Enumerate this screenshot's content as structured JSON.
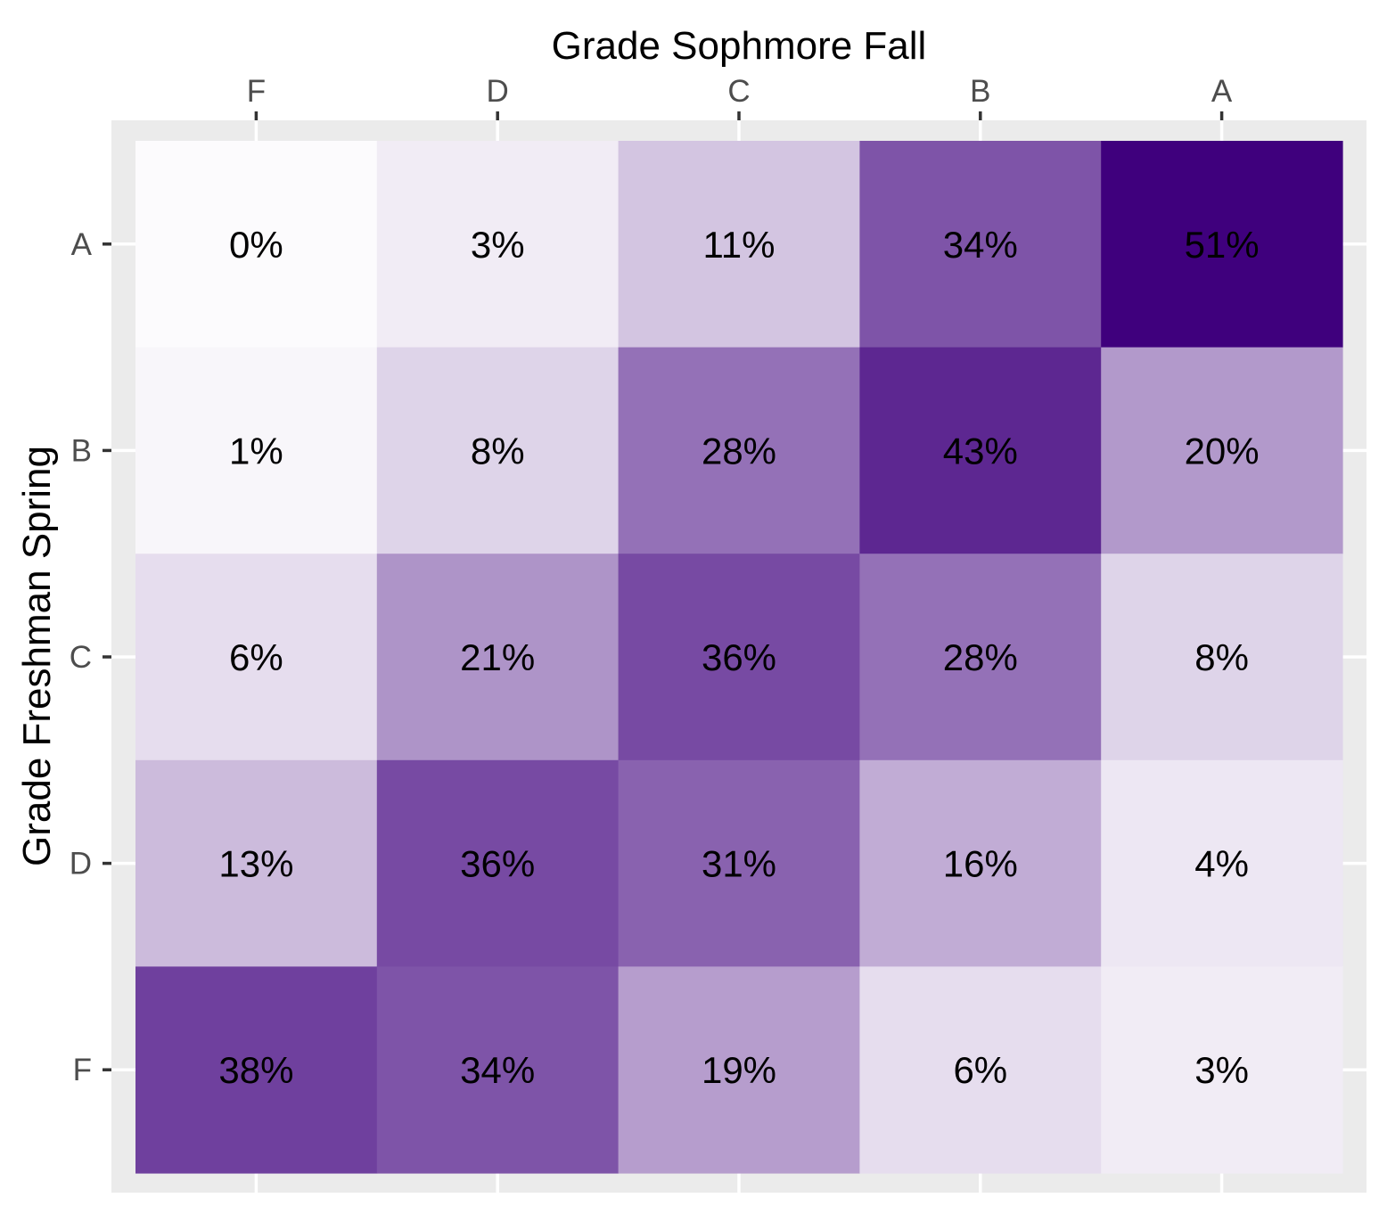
{
  "colors": {
    "panel_background": "#ebebeb",
    "gridline": "#ffffff",
    "tick": "#333333",
    "tick_label": "#4d4d4d",
    "text": "#000000",
    "scale_low": "#fcfbfd",
    "scale_high": "#3f007d"
  },
  "chart_data": {
    "type": "heatmap",
    "title": "",
    "xlabel": "Grade Sophmore Fall",
    "ylabel": "Grade Freshman Spring",
    "x_axis_position": "top",
    "grid": true,
    "legend": "none",
    "x_categories": [
      "F",
      "D",
      "C",
      "B",
      "A"
    ],
    "y_categories": [
      "A",
      "B",
      "C",
      "D",
      "F"
    ],
    "values": [
      [
        0,
        3,
        11,
        34,
        51
      ],
      [
        1,
        8,
        28,
        43,
        20
      ],
      [
        6,
        21,
        36,
        28,
        8
      ],
      [
        13,
        36,
        31,
        16,
        4
      ],
      [
        38,
        34,
        19,
        6,
        3
      ]
    ],
    "labels": [
      [
        "0%",
        "3%",
        "11%",
        "34%",
        "51%"
      ],
      [
        "1%",
        "8%",
        "28%",
        "43%",
        "20%"
      ],
      [
        "6%",
        "21%",
        "36%",
        "28%",
        "8%"
      ],
      [
        "13%",
        "36%",
        "31%",
        "16%",
        "4%"
      ],
      [
        "38%",
        "34%",
        "19%",
        "6%",
        "3%"
      ]
    ],
    "value_range": [
      0,
      51
    ],
    "unit": "%"
  }
}
